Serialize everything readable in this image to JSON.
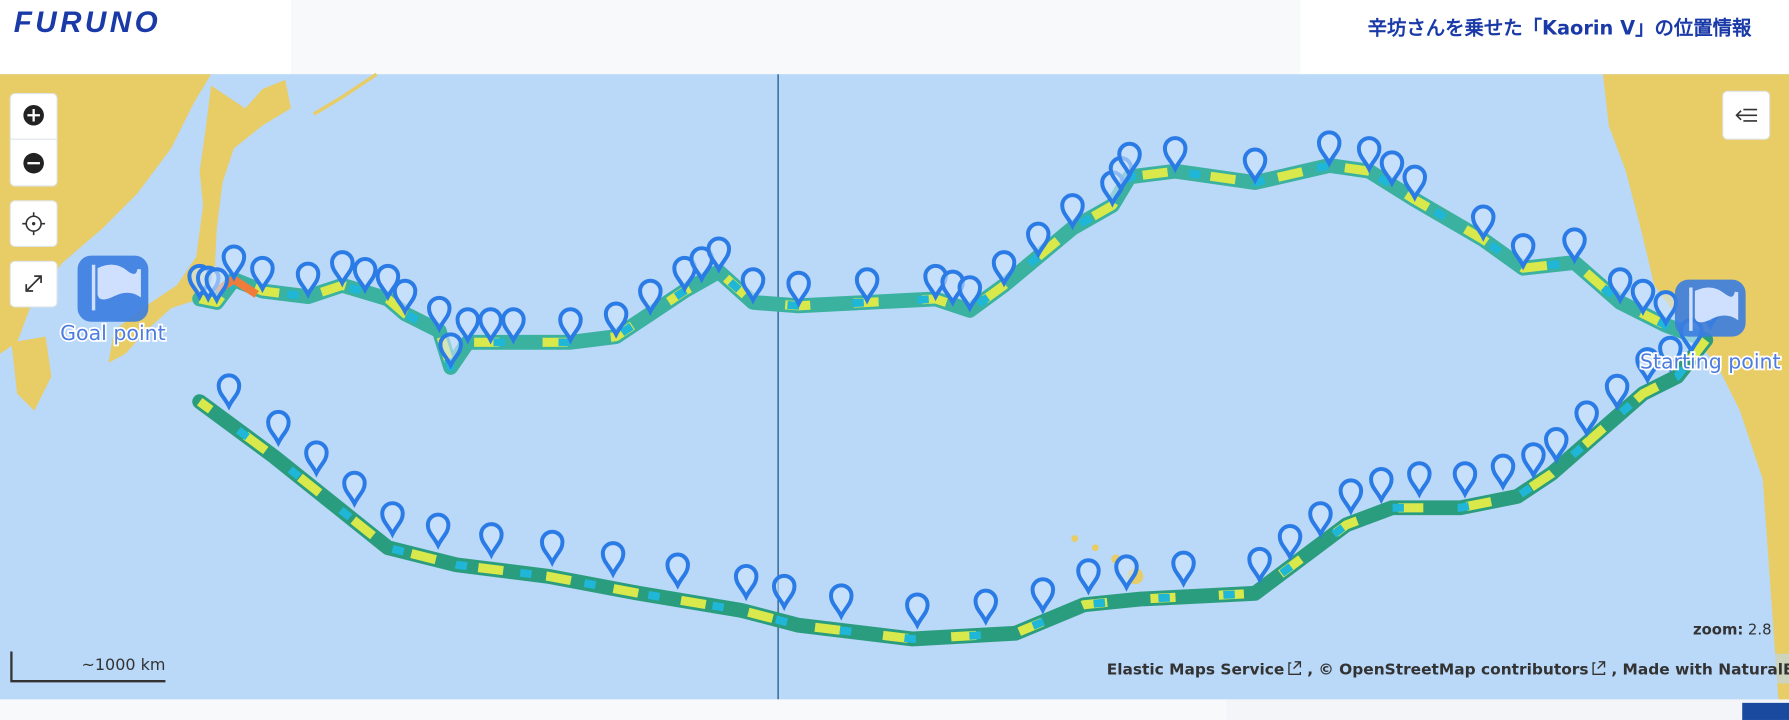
{
  "header": {
    "logo": "FURUNO",
    "title": "辛坊さんを乗せた「Kaorin Ⅴ」の位置情報"
  },
  "map": {
    "goal_label": "Goal point",
    "start_label": "Starting point",
    "scale_bar": "~1000 km",
    "zoom": {
      "label": "zoom:",
      "value": 2.8
    },
    "attribution": [
      "Elastic Maps Service",
      ", © OpenStreetMap contributors",
      ", Made with NaturalEarth"
    ]
  }
}
